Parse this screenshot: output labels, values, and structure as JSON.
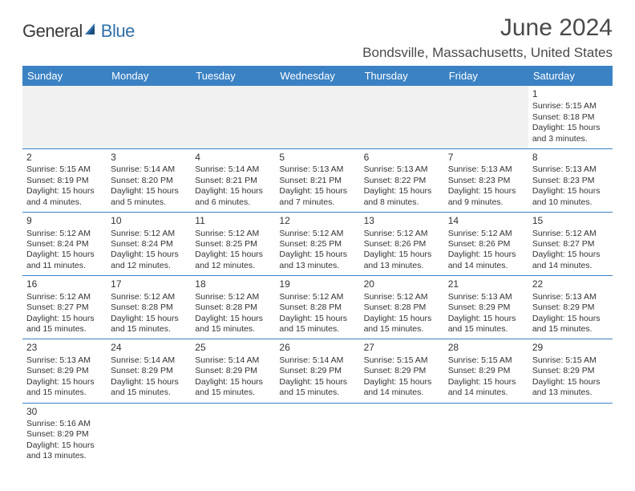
{
  "logo": {
    "part1": "General",
    "part2": "Blue"
  },
  "title": "June 2024",
  "location": "Bondsville, Massachusetts, United States",
  "colors": {
    "header_bg": "#3b82c4",
    "header_text": "#ffffff",
    "accent": "#2f6fa8",
    "text": "#333333",
    "empty_bg": "#f1f1f1",
    "border": "#3b82c4"
  },
  "day_headers": [
    "Sunday",
    "Monday",
    "Tuesday",
    "Wednesday",
    "Thursday",
    "Friday",
    "Saturday"
  ],
  "weeks": [
    [
      null,
      null,
      null,
      null,
      null,
      null,
      {
        "n": "1",
        "sr": "5:15 AM",
        "ss": "8:18 PM",
        "dl": "15 hours and 3 minutes."
      }
    ],
    [
      {
        "n": "2",
        "sr": "5:15 AM",
        "ss": "8:19 PM",
        "dl": "15 hours and 4 minutes."
      },
      {
        "n": "3",
        "sr": "5:14 AM",
        "ss": "8:20 PM",
        "dl": "15 hours and 5 minutes."
      },
      {
        "n": "4",
        "sr": "5:14 AM",
        "ss": "8:21 PM",
        "dl": "15 hours and 6 minutes."
      },
      {
        "n": "5",
        "sr": "5:13 AM",
        "ss": "8:21 PM",
        "dl": "15 hours and 7 minutes."
      },
      {
        "n": "6",
        "sr": "5:13 AM",
        "ss": "8:22 PM",
        "dl": "15 hours and 8 minutes."
      },
      {
        "n": "7",
        "sr": "5:13 AM",
        "ss": "8:23 PM",
        "dl": "15 hours and 9 minutes."
      },
      {
        "n": "8",
        "sr": "5:13 AM",
        "ss": "8:23 PM",
        "dl": "15 hours and 10 minutes."
      }
    ],
    [
      {
        "n": "9",
        "sr": "5:12 AM",
        "ss": "8:24 PM",
        "dl": "15 hours and 11 minutes."
      },
      {
        "n": "10",
        "sr": "5:12 AM",
        "ss": "8:24 PM",
        "dl": "15 hours and 12 minutes."
      },
      {
        "n": "11",
        "sr": "5:12 AM",
        "ss": "8:25 PM",
        "dl": "15 hours and 12 minutes."
      },
      {
        "n": "12",
        "sr": "5:12 AM",
        "ss": "8:25 PM",
        "dl": "15 hours and 13 minutes."
      },
      {
        "n": "13",
        "sr": "5:12 AM",
        "ss": "8:26 PM",
        "dl": "15 hours and 13 minutes."
      },
      {
        "n": "14",
        "sr": "5:12 AM",
        "ss": "8:26 PM",
        "dl": "15 hours and 14 minutes."
      },
      {
        "n": "15",
        "sr": "5:12 AM",
        "ss": "8:27 PM",
        "dl": "15 hours and 14 minutes."
      }
    ],
    [
      {
        "n": "16",
        "sr": "5:12 AM",
        "ss": "8:27 PM",
        "dl": "15 hours and 15 minutes."
      },
      {
        "n": "17",
        "sr": "5:12 AM",
        "ss": "8:28 PM",
        "dl": "15 hours and 15 minutes."
      },
      {
        "n": "18",
        "sr": "5:12 AM",
        "ss": "8:28 PM",
        "dl": "15 hours and 15 minutes."
      },
      {
        "n": "19",
        "sr": "5:12 AM",
        "ss": "8:28 PM",
        "dl": "15 hours and 15 minutes."
      },
      {
        "n": "20",
        "sr": "5:12 AM",
        "ss": "8:28 PM",
        "dl": "15 hours and 15 minutes."
      },
      {
        "n": "21",
        "sr": "5:13 AM",
        "ss": "8:29 PM",
        "dl": "15 hours and 15 minutes."
      },
      {
        "n": "22",
        "sr": "5:13 AM",
        "ss": "8:29 PM",
        "dl": "15 hours and 15 minutes."
      }
    ],
    [
      {
        "n": "23",
        "sr": "5:13 AM",
        "ss": "8:29 PM",
        "dl": "15 hours and 15 minutes."
      },
      {
        "n": "24",
        "sr": "5:14 AM",
        "ss": "8:29 PM",
        "dl": "15 hours and 15 minutes."
      },
      {
        "n": "25",
        "sr": "5:14 AM",
        "ss": "8:29 PM",
        "dl": "15 hours and 15 minutes."
      },
      {
        "n": "26",
        "sr": "5:14 AM",
        "ss": "8:29 PM",
        "dl": "15 hours and 15 minutes."
      },
      {
        "n": "27",
        "sr": "5:15 AM",
        "ss": "8:29 PM",
        "dl": "15 hours and 14 minutes."
      },
      {
        "n": "28",
        "sr": "5:15 AM",
        "ss": "8:29 PM",
        "dl": "15 hours and 14 minutes."
      },
      {
        "n": "29",
        "sr": "5:15 AM",
        "ss": "8:29 PM",
        "dl": "15 hours and 13 minutes."
      }
    ],
    [
      {
        "n": "30",
        "sr": "5:16 AM",
        "ss": "8:29 PM",
        "dl": "15 hours and 13 minutes."
      },
      null,
      null,
      null,
      null,
      null,
      null
    ]
  ],
  "labels": {
    "sunrise": "Sunrise:",
    "sunset": "Sunset:",
    "daylight": "Daylight:"
  }
}
